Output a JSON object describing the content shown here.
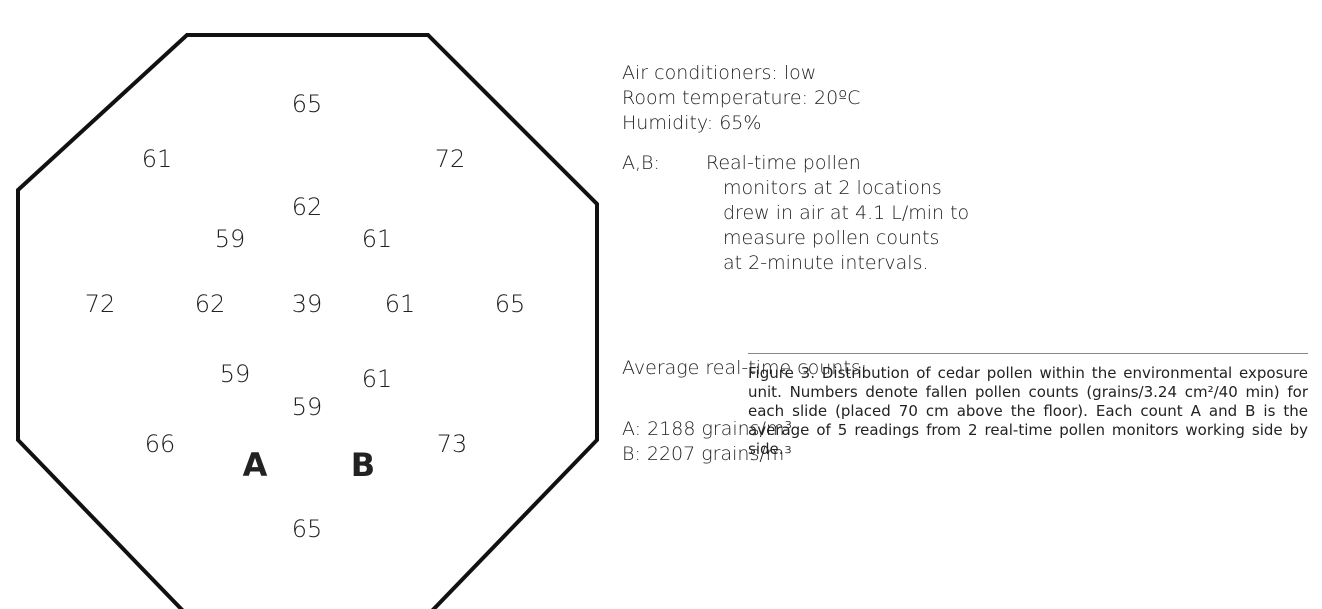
{
  "slide_counts": [
    65,
    61,
    72,
    62,
    59,
    61,
    72,
    62,
    39,
    61,
    65,
    59,
    61,
    59,
    66,
    73,
    65
  ],
  "monitors": [
    "A",
    "B"
  ],
  "conditions": [
    "Air conditioners: low",
    "Room temperature: 20ºC",
    "Humidity: 65%"
  ],
  "monitor_note": {
    "label": "A,B:",
    "lines": [
      "Real-time pollen",
      "monitors at 2 locations",
      "drew in air at 4.1 L/min to",
      "measure pollen counts",
      "at 2-minute intervals."
    ]
  },
  "average": {
    "title": "Average real-time counts:",
    "lines": [
      "A: 2188 grains/m³",
      "B: 2207 grains/m³"
    ]
  },
  "caption": {
    "label": "Figure 3",
    "text": ". Distribution of cedar pollen within the environmental exposure unit. Numbers denote fallen pollen counts (grains/3.24 cm²/40 min) for each slide (placed 70 cm above the floor). Each count A and B is the average of 5 readings from 2 real-time pollen monitors working side by side."
  }
}
